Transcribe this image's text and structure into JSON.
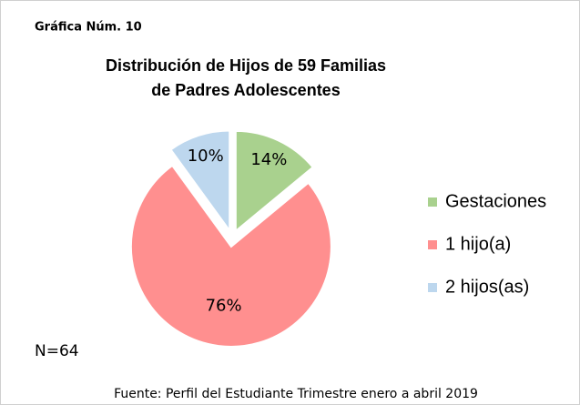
{
  "chart_data": {
    "type": "pie",
    "figure_label": "Gráfica Núm. 10",
    "title": [
      "Distribución de Hijos de 59 Familias",
      "de Padres Adolescentes"
    ],
    "categories": [
      "Gestaciones",
      "1 hijo(a)",
      "2 hijos(as)"
    ],
    "values": [
      14,
      76,
      10
    ],
    "value_labels": [
      "14%",
      "76%",
      "10%"
    ],
    "colors": [
      "#a9d18e",
      "#ff8f8f",
      "#bdd7ee"
    ],
    "legend": "right",
    "annotation": "N=64",
    "source": "Fuente: Perfil del Estudiante Trimestre enero a abril 2019"
  }
}
